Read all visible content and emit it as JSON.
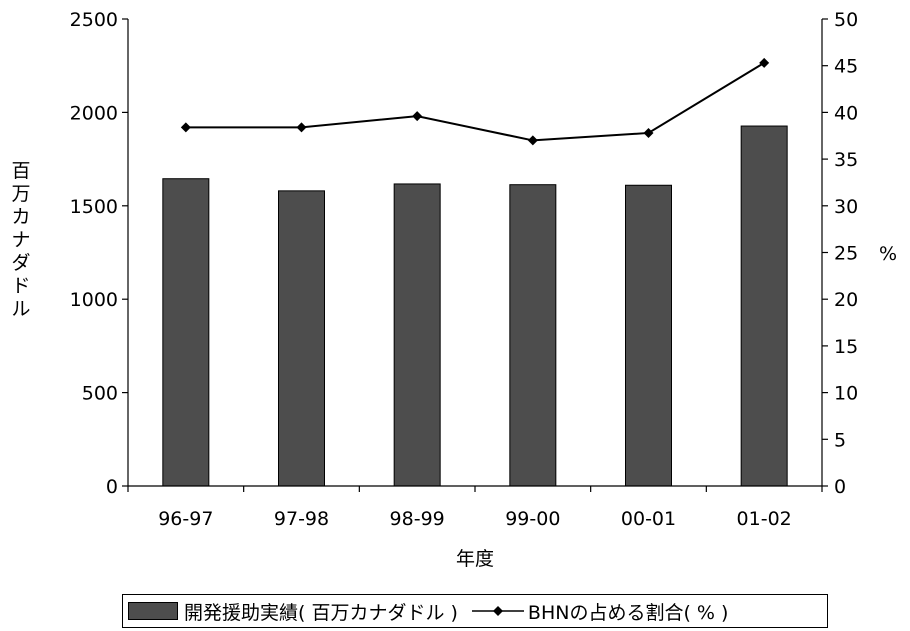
{
  "chart_data": {
    "type": "bar",
    "categories": [
      "96-97",
      "97-98",
      "98-99",
      "99-00",
      "00-01",
      "01-02"
    ],
    "series": [
      {
        "name": "開発援助実績( 百万カナダドル )",
        "type": "bar",
        "axis": "left",
        "color": "#4d4d4d",
        "values": [
          1645,
          1580,
          1617,
          1613,
          1610,
          1927
        ]
      },
      {
        "name": "BHNの占める割合( % )",
        "type": "line",
        "axis": "right",
        "color": "#000000",
        "marker": "diamond",
        "values": [
          38.4,
          38.4,
          39.6,
          37.0,
          37.8,
          45.3
        ]
      }
    ],
    "xlabel": "年度",
    "ylabel_left": "百万カナダドル",
    "ylabel_right": "%",
    "ylim_left": [
      0,
      2500
    ],
    "ylim_right": [
      0,
      50
    ],
    "yticks_left": [
      0,
      500,
      1000,
      1500,
      2000,
      2500
    ],
    "yticks_right": [
      0,
      5,
      10,
      15,
      20,
      25,
      30,
      35,
      40,
      45,
      50
    ],
    "grid": false,
    "legend_position": "bottom"
  },
  "legend": {
    "bar_label": "開発援助実績( 百万カナダドル )",
    "line_label": "BHNの占める割合( % )"
  }
}
